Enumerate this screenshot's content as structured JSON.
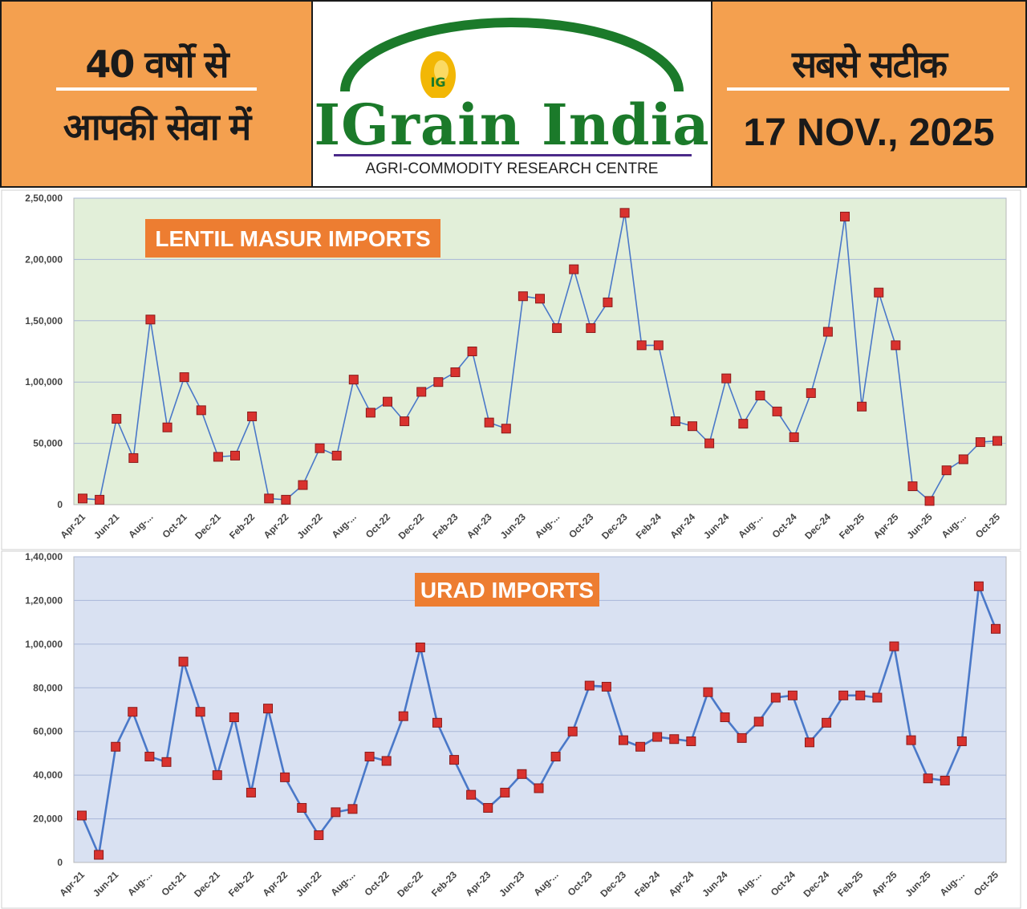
{
  "header": {
    "left_line1": "40 वर्षो से",
    "left_line2": "आपकी सेवा में",
    "logo_badge": "IG",
    "logo_name": "IGrain India",
    "logo_tagline": "AGRI-COMMODITY RESEARCH CENTRE",
    "right_line1": "सबसे सटीक",
    "right_date": "17 NOV., 2025"
  },
  "colors": {
    "orange": "#f4a04f",
    "brand_green": "#1b7a2a",
    "line": "#4a78c8",
    "marker": "#d9322e",
    "chart1_bg": "#e2efd9",
    "chart2_bg": "#d9e1f2"
  },
  "chart_data": [
    {
      "type": "line",
      "title": "LENTIL MASUR  IMPORTS",
      "ylim": [
        0,
        250000
      ],
      "yticks": [
        0,
        50000,
        100000,
        150000,
        200000,
        250000
      ],
      "ytick_labels": [
        "0",
        "50,000",
        "1,00,000",
        "1,50,000",
        "2,00,000",
        "2,50,000"
      ],
      "xtick_labels": [
        "Apr-21",
        "Jun-21",
        "Aug-...",
        "Oct-21",
        "Dec-21",
        "Feb-22",
        "Apr-22",
        "Jun-22",
        "Aug-...",
        "Oct-22",
        "Dec-22",
        "Feb-23",
        "Apr-23",
        "Jun-23",
        "Aug-...",
        "Oct-23",
        "Dec-23",
        "Feb-24",
        "Apr-24",
        "Jun-24",
        "Aug-...",
        "Oct-24",
        "Dec-24",
        "Feb-25",
        "Apr-25",
        "Jun-25",
        "Aug-...",
        "Oct-25"
      ],
      "x": [
        "Apr-21",
        "May-21",
        "Jun-21",
        "Jul-21",
        "Aug-21",
        "Sep-21",
        "Oct-21",
        "Nov-21",
        "Dec-21",
        "Jan-22",
        "Feb-22",
        "Mar-22",
        "Apr-22",
        "May-22",
        "Jun-22",
        "Jul-22",
        "Aug-22",
        "Sep-22",
        "Oct-22",
        "Nov-22",
        "Dec-22",
        "Jan-23",
        "Feb-23",
        "Mar-23",
        "Apr-23",
        "May-23",
        "Jun-23",
        "Jul-23",
        "Aug-23",
        "Sep-23",
        "Oct-23",
        "Nov-23",
        "Dec-23",
        "Jan-24",
        "Feb-24",
        "Mar-24",
        "Apr-24",
        "May-24",
        "Jun-24",
        "Jul-24",
        "Aug-24",
        "Sep-24",
        "Oct-24",
        "Nov-24",
        "Dec-24",
        "Jan-25",
        "Feb-25",
        "Mar-25",
        "Apr-25",
        "May-25",
        "Jun-25",
        "Jul-25",
        "Aug-25",
        "Sep-25",
        "Oct-25"
      ],
      "values": [
        5000,
        4000,
        70000,
        38000,
        151000,
        63000,
        104000,
        77000,
        39000,
        40000,
        72000,
        5000,
        4000,
        16000,
        46000,
        40000,
        102000,
        75000,
        84000,
        68000,
        92000,
        100000,
        108000,
        125000,
        67000,
        62000,
        170000,
        168000,
        144000,
        192000,
        144000,
        165000,
        238000,
        130000,
        130000,
        68000,
        64000,
        50000,
        103000,
        66000,
        89000,
        76000,
        55000,
        91000,
        141000,
        235000,
        80000,
        173000,
        130000,
        15000,
        3000,
        28000,
        37000,
        51000,
        52000
      ]
    },
    {
      "type": "line",
      "title": "URAD IMPORTS",
      "ylim": [
        0,
        140000
      ],
      "yticks": [
        0,
        20000,
        40000,
        60000,
        80000,
        100000,
        120000,
        140000
      ],
      "ytick_labels": [
        "0",
        "20,000",
        "40,000",
        "60,000",
        "80,000",
        "1,00,000",
        "1,20,000",
        "1,40,000"
      ],
      "xtick_labels": [
        "Apr-21",
        "Jun-21",
        "Aug-...",
        "Oct-21",
        "Dec-21",
        "Feb-22",
        "Apr-22",
        "Jun-22",
        "Aug-...",
        "Oct-22",
        "Dec-22",
        "Feb-23",
        "Apr-23",
        "Jun-23",
        "Aug-...",
        "Oct-23",
        "Dec-23",
        "Feb-24",
        "Apr-24",
        "Jun-24",
        "Aug-...",
        "Oct-24",
        "Dec-24",
        "Feb-25",
        "Apr-25",
        "Jun-25",
        "Aug-...",
        "Oct-25"
      ],
      "x": [
        "Apr-21",
        "May-21",
        "Jun-21",
        "Jul-21",
        "Aug-21",
        "Sep-21",
        "Oct-21",
        "Nov-21",
        "Dec-21",
        "Jan-22",
        "Feb-22",
        "Mar-22",
        "Apr-22",
        "May-22",
        "Jun-22",
        "Jul-22",
        "Aug-22",
        "Sep-22",
        "Oct-22",
        "Nov-22",
        "Dec-22",
        "Jan-23",
        "Feb-23",
        "Mar-23",
        "Apr-23",
        "May-23",
        "Jun-23",
        "Jul-23",
        "Aug-23",
        "Sep-23",
        "Oct-23",
        "Nov-23",
        "Dec-23",
        "Jan-24",
        "Feb-24",
        "Mar-24",
        "Apr-24",
        "May-24",
        "Jun-24",
        "Jul-24",
        "Aug-24",
        "Sep-24",
        "Oct-24",
        "Nov-24",
        "Dec-24",
        "Jan-25",
        "Feb-25",
        "Mar-25",
        "Apr-25",
        "May-25",
        "Jun-25",
        "Jul-25",
        "Aug-25",
        "Sep-25",
        "Oct-25"
      ],
      "values": [
        21500,
        3500,
        53000,
        69000,
        48500,
        46000,
        92000,
        69000,
        40000,
        66500,
        32000,
        70500,
        39000,
        25000,
        12500,
        23000,
        24500,
        48500,
        46500,
        67000,
        98500,
        64000,
        47000,
        31000,
        25000,
        32000,
        40500,
        34000,
        48500,
        60000,
        81000,
        80500,
        56000,
        53000,
        57500,
        56500,
        55500,
        78000,
        66500,
        57000,
        64500,
        75500,
        76500,
        55000,
        64000,
        76500,
        76500,
        75500,
        99000,
        56000,
        38500,
        37500,
        55500,
        126500,
        107000
      ]
    }
  ]
}
